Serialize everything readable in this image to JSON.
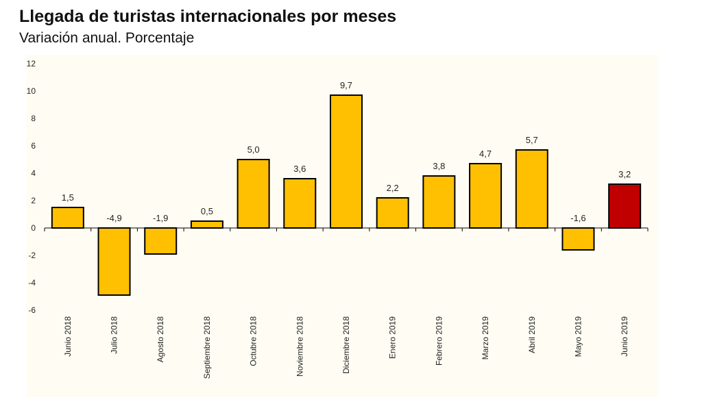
{
  "title": "Llegada de turistas internacionales por meses",
  "subtitle": "Variación anual. Porcentaje",
  "colors": {
    "plot_background": "#fffdf3",
    "bar_default": "#fec000",
    "bar_highlight": "#c00000",
    "bar_outline": "#000000"
  },
  "chart_data": {
    "type": "bar",
    "title": "Llegada de turistas internacionales por meses",
    "subtitle": "Variación anual. Porcentaje",
    "categories": [
      "Junio 2018",
      "Julio 2018",
      "Agosto 2018",
      "Septiembre 2018",
      "Octubre 2018",
      "Noviembre 2018",
      "Diciembre 2018",
      "Enero 2019",
      "Febrero 2019",
      "Marzo 2019",
      "Abril 2019",
      "Mayo 2019",
      "Junio 2019"
    ],
    "values": [
      1.5,
      -4.9,
      -1.9,
      0.5,
      5.0,
      3.6,
      9.7,
      2.2,
      3.8,
      4.7,
      5.7,
      -1.6,
      3.2
    ],
    "data_labels": [
      "1,5",
      "-4,9",
      "-1,9",
      "0,5",
      "5,0",
      "3,6",
      "9,7",
      "2,2",
      "3,8",
      "4,7",
      "5,7",
      "-1,6",
      "3,2"
    ],
    "highlight_index": 12,
    "ylim": [
      -6,
      12
    ],
    "yticks": [
      -6,
      -4,
      -2,
      0,
      2,
      4,
      6,
      8,
      10,
      12
    ],
    "xlabel": "",
    "ylabel": "",
    "grid": false,
    "legend": "none"
  }
}
